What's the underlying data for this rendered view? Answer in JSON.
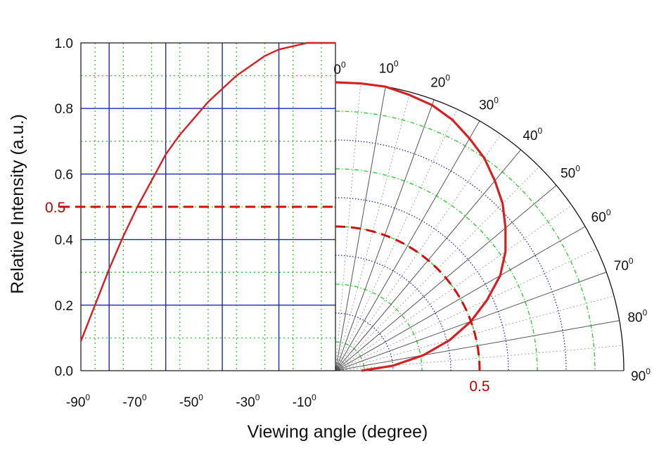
{
  "chart_data": {
    "type": "line",
    "xlabel": "Viewing angle (degree)",
    "ylabel": "Relative Intensity (a.u.)",
    "xlim": [
      -90,
      0
    ],
    "ylim": [
      0.0,
      1.0
    ],
    "x_tick_labels": [
      {
        "value": -90,
        "text": "-90",
        "sup": "0"
      },
      {
        "value": -70,
        "text": "-70",
        "sup": "0"
      },
      {
        "value": -50,
        "text": "-50",
        "sup": "0"
      },
      {
        "value": -30,
        "text": "-30",
        "sup": "0"
      },
      {
        "value": -10,
        "text": "-10",
        "sup": "0"
      }
    ],
    "y_tick_labels": [
      "0.0",
      "0.2",
      "0.4",
      "0.6",
      "0.8",
      "1.0"
    ],
    "polar_angle_labels": [
      {
        "value": 0,
        "text": "0",
        "sup": "0"
      },
      {
        "value": 10,
        "text": "10",
        "sup": "0"
      },
      {
        "value": 20,
        "text": "20",
        "sup": "0"
      },
      {
        "value": 30,
        "text": "30",
        "sup": "0"
      },
      {
        "value": 40,
        "text": "40",
        "sup": "0"
      },
      {
        "value": 50,
        "text": "50",
        "sup": "0"
      },
      {
        "value": 60,
        "text": "60",
        "sup": "0"
      },
      {
        "value": 70,
        "text": "70",
        "sup": "0"
      },
      {
        "value": 80,
        "text": "80",
        "sup": "0"
      },
      {
        "value": 90,
        "text": "90",
        "sup": "0"
      }
    ],
    "half_intensity": {
      "value": 0.5,
      "left_label": "0.5",
      "bottom_label": "0.5"
    },
    "series": [
      {
        "x": [
          -90,
          -85,
          -80,
          -75,
          -70,
          -65,
          -60,
          -55,
          -50,
          -45,
          -40,
          -35,
          -30,
          -25,
          -20,
          -15,
          -10,
          -5,
          0
        ],
        "y": [
          0.09,
          0.2,
          0.31,
          0.41,
          0.5,
          0.58,
          0.66,
          0.72,
          0.77,
          0.82,
          0.86,
          0.9,
          0.93,
          0.96,
          0.98,
          0.99,
          1.0,
          1.0,
          1.0
        ]
      }
    ],
    "colors": {
      "curve": "#d42020",
      "dashed": "#cc1111",
      "major_grid": "#1a2aa8",
      "minor_grid": "#22cc22",
      "spoke": "#555555"
    }
  }
}
